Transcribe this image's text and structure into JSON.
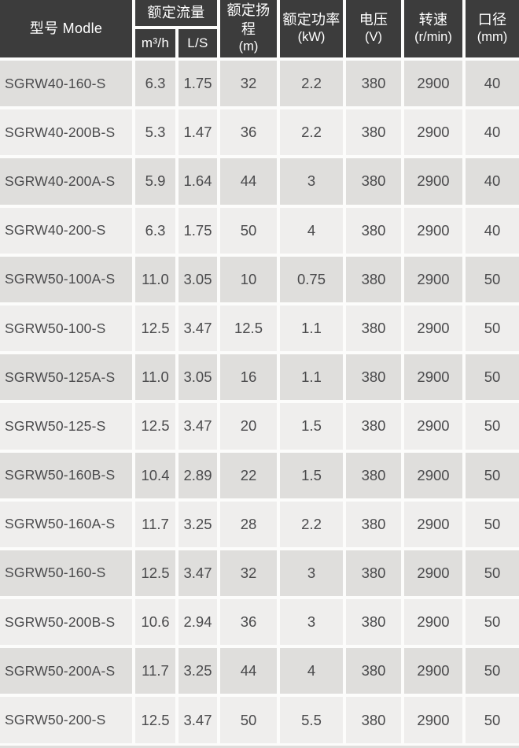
{
  "table": {
    "header": {
      "model": "型号 Modle",
      "rated_flow": "额定流量",
      "flow_unit_m3h": "m³/h",
      "flow_unit_ls": "L/S",
      "head": {
        "title": "额定扬程",
        "unit": "(m)"
      },
      "power": {
        "title": "额定功率",
        "unit": "(kW)"
      },
      "voltage": {
        "title": "电压",
        "unit": "(V)"
      },
      "speed": {
        "title": "转速",
        "unit": "(r/min)"
      },
      "diameter": {
        "title": "口径",
        "unit": "(mm)"
      }
    },
    "rows": [
      {
        "model": "SGRW40-160-S",
        "flow_m3h": "6.3",
        "flow_ls": "1.75",
        "head_m": "32",
        "power_kw": "2.2",
        "voltage_v": "380",
        "speed_rpm": "2900",
        "diameter_mm": "40"
      },
      {
        "model": "SGRW40-200B-S",
        "flow_m3h": "5.3",
        "flow_ls": "1.47",
        "head_m": "36",
        "power_kw": "2.2",
        "voltage_v": "380",
        "speed_rpm": "2900",
        "diameter_mm": "40"
      },
      {
        "model": "SGRW40-200A-S",
        "flow_m3h": "5.9",
        "flow_ls": "1.64",
        "head_m": "44",
        "power_kw": "3",
        "voltage_v": "380",
        "speed_rpm": "2900",
        "diameter_mm": "40"
      },
      {
        "model": "SGRW40-200-S",
        "flow_m3h": "6.3",
        "flow_ls": "1.75",
        "head_m": "50",
        "power_kw": "4",
        "voltage_v": "380",
        "speed_rpm": "2900",
        "diameter_mm": "40"
      },
      {
        "model": "SGRW50-100A-S",
        "flow_m3h": "11.0",
        "flow_ls": "3.05",
        "head_m": "10",
        "power_kw": "0.75",
        "voltage_v": "380",
        "speed_rpm": "2900",
        "diameter_mm": "50"
      },
      {
        "model": "SGRW50-100-S",
        "flow_m3h": "12.5",
        "flow_ls": "3.47",
        "head_m": "12.5",
        "power_kw": "1.1",
        "voltage_v": "380",
        "speed_rpm": "2900",
        "diameter_mm": "50"
      },
      {
        "model": "SGRW50-125A-S",
        "flow_m3h": "11.0",
        "flow_ls": "3.05",
        "head_m": "16",
        "power_kw": "1.1",
        "voltage_v": "380",
        "speed_rpm": "2900",
        "diameter_mm": "50"
      },
      {
        "model": "SGRW50-125-S",
        "flow_m3h": "12.5",
        "flow_ls": "3.47",
        "head_m": "20",
        "power_kw": "1.5",
        "voltage_v": "380",
        "speed_rpm": "2900",
        "diameter_mm": "50"
      },
      {
        "model": "SGRW50-160B-S",
        "flow_m3h": "10.4",
        "flow_ls": "2.89",
        "head_m": "22",
        "power_kw": "1.5",
        "voltage_v": "380",
        "speed_rpm": "2900",
        "diameter_mm": "50"
      },
      {
        "model": "SGRW50-160A-S",
        "flow_m3h": "11.7",
        "flow_ls": "3.25",
        "head_m": "28",
        "power_kw": "2.2",
        "voltage_v": "380",
        "speed_rpm": "2900",
        "diameter_mm": "50"
      },
      {
        "model": "SGRW50-160-S",
        "flow_m3h": "12.5",
        "flow_ls": "3.47",
        "head_m": "32",
        "power_kw": "3",
        "voltage_v": "380",
        "speed_rpm": "2900",
        "diameter_mm": "50"
      },
      {
        "model": "SGRW50-200B-S",
        "flow_m3h": "10.6",
        "flow_ls": "2.94",
        "head_m": "36",
        "power_kw": "3",
        "voltage_v": "380",
        "speed_rpm": "2900",
        "diameter_mm": "50"
      },
      {
        "model": "SGRW50-200A-S",
        "flow_m3h": "11.7",
        "flow_ls": "3.25",
        "head_m": "44",
        "power_kw": "4",
        "voltage_v": "380",
        "speed_rpm": "2900",
        "diameter_mm": "50"
      },
      {
        "model": "SGRW50-200-S",
        "flow_m3h": "12.5",
        "flow_ls": "3.47",
        "head_m": "50",
        "power_kw": "5.5",
        "voltage_v": "380",
        "speed_rpm": "2900",
        "diameter_mm": "50"
      }
    ]
  },
  "colors": {
    "header_bg": "#3c3c3c",
    "header_text": "#ffffff",
    "row_dark": "#dfdedc",
    "row_light": "#efeeed",
    "gap": "#fcfcfb",
    "text": "#4a4a4c"
  }
}
